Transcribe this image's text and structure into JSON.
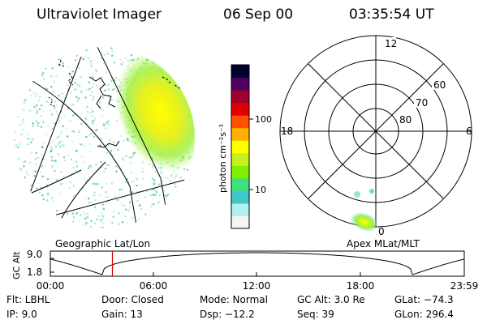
{
  "header": {
    "instrument": "Ultraviolet Imager",
    "date": "06 Sep 00",
    "time": "03:35:54 UT"
  },
  "colorbar": {
    "unit_label": "photon cm⁻²s⁻¹",
    "ticks": [
      {
        "label": "100",
        "value": 100
      },
      {
        "label": "10",
        "value": 10
      }
    ],
    "colors": [
      "#f5f5f5",
      "#b0f0f0",
      "#40c8c8",
      "#40e080",
      "#80f000",
      "#c8f020",
      "#ffff00",
      "#ffb000",
      "#ff5000",
      "#e00000",
      "#a00030",
      "#500060",
      "#000030"
    ]
  },
  "polar_plot": {
    "mlt_labels": {
      "top": "12",
      "left": "18",
      "right": "6",
      "bottom": "0"
    },
    "lat_labels": [
      "60",
      "70",
      "80"
    ]
  },
  "geo_label": "Geographic Lat/Lon",
  "apex_label": "Apex MLat/MLT",
  "orbit": {
    "y_axis_label": "GC Alt",
    "y_ticks": [
      "9.0",
      "1.8"
    ],
    "x_ticks": [
      "00:00",
      "06:00",
      "12:00",
      "18:00",
      "23:59"
    ],
    "current_time_fraction": 0.15
  },
  "info": {
    "flt": "Flt: LBHL",
    "ip": "IP: 9.0",
    "door": "Door: Closed",
    "gain": "Gain: 13",
    "mode": "Mode: Normal",
    "dsp": "Dsp: −12.2",
    "gcalt": "GC Alt: 3.0 Re",
    "seq": "Seq: 39",
    "glat": "GLat: −74.3",
    "glon": "GLon: 296.4"
  },
  "colors": {
    "marker": "#d00000",
    "foreground": "#000000",
    "background": "#ffffff"
  }
}
